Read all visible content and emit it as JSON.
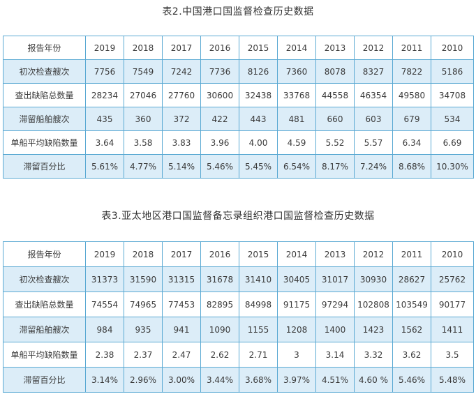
{
  "table1": {
    "caption": "表2.中国港口国监督检查历史数据",
    "header": [
      "报告年份",
      "2019",
      "2018",
      "2017",
      "2016",
      "2015",
      "2014",
      "2013",
      "2012",
      "2011",
      "2010"
    ],
    "rows": [
      {
        "label": "初次检查艘次",
        "values": [
          "7756",
          "7549",
          "7242",
          "7736",
          "8126",
          "7360",
          "8078",
          "8327",
          "7822",
          "5186"
        ]
      },
      {
        "label": "查出缺陷总数量",
        "values": [
          "28234",
          "27046",
          "27760",
          "30600",
          "32438",
          "33768",
          "44558",
          "46354",
          "49580",
          "34708"
        ]
      },
      {
        "label": "滞留船舶艘次",
        "values": [
          "435",
          "360",
          "372",
          "422",
          "443",
          "481",
          "660",
          "603",
          "679",
          "534"
        ]
      },
      {
        "label": "单船平均缺陷数量",
        "values": [
          "3.64",
          "3.58",
          "3.83",
          "3.96",
          "4.00",
          "4.59",
          "5.52",
          "5.57",
          "6.34",
          "6.69"
        ]
      },
      {
        "label": "滞留百分比",
        "values": [
          "5.61%",
          "4.77%",
          "5.14%",
          "5.46%",
          "5.45%",
          "6.54%",
          "8.17%",
          "7.24%",
          "8.68%",
          "10.30%"
        ]
      }
    ]
  },
  "table2": {
    "caption": "表3.亚太地区港口国监督备忘录组织港口国监督检查历史数据",
    "header": [
      "报告年份",
      "2019",
      "2018",
      "2017",
      "2016",
      "2015",
      "2014",
      "2013",
      "2012",
      "2011",
      "2010"
    ],
    "rows": [
      {
        "label": "初次检查艘次",
        "values": [
          "31373",
          "31590",
          "31315",
          "31678",
          "31410",
          "30405",
          "31017",
          "30930",
          "28627",
          "25762"
        ]
      },
      {
        "label": "查出缺陷总数量",
        "values": [
          "74554",
          "74965",
          "77453",
          "82895",
          "84998",
          "91175",
          "97294",
          "102808",
          "103549",
          "90177"
        ]
      },
      {
        "label": "滞留船舶艘次",
        "values": [
          "984",
          "935",
          "941",
          "1090",
          "1155",
          "1208",
          "1400",
          "1423",
          "1562",
          "1411"
        ]
      },
      {
        "label": "单船平均缺陷数量",
        "values": [
          "2.38",
          "2.37",
          "2.47",
          "2.62",
          "2.71",
          "3",
          "3.14",
          "3.32",
          "3.62",
          "3.5"
        ]
      },
      {
        "label": "滞留百分比",
        "values": [
          "3.14%",
          "2.96%",
          "3.00%",
          "3.44%",
          "3.68%",
          "3.97%",
          "4.51%",
          "4.60 %",
          "5.46%",
          "5.48%"
        ]
      }
    ]
  }
}
